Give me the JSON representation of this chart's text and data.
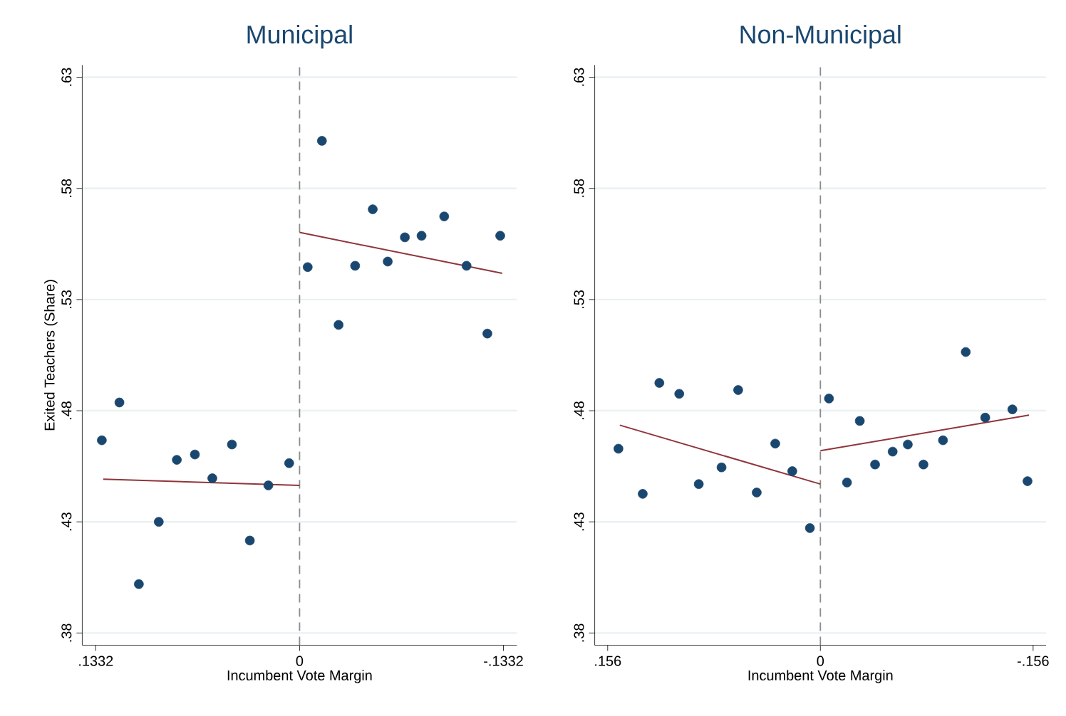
{
  "chart_data": [
    {
      "type": "scatter",
      "title": "Municipal",
      "xlabel": "Incumbent Vote Margin",
      "ylabel": "Exited Teachers (Share)",
      "xlim": [
        0.142,
        -0.142
      ],
      "ylim": [
        0.3745,
        0.6355
      ],
      "xticks": [
        {
          "value": 0.1332,
          "label": ".1332"
        },
        0,
        {
          "value": -0.1332,
          "label": "-.1332"
        }
      ],
      "yticks": [
        {
          "value": 0.38,
          "label": ".38"
        },
        {
          "value": 0.43,
          "label": ".43"
        },
        {
          "value": 0.48,
          "label": ".48"
        },
        {
          "value": 0.53,
          "label": ".53"
        },
        {
          "value": 0.58,
          "label": ".58"
        },
        {
          "value": 0.63,
          "label": ".63"
        }
      ],
      "grid": "y",
      "ref_lines": [
        {
          "axis": "x",
          "value": 0,
          "color": "#8c8c8c",
          "line_style": "dashed"
        }
      ],
      "series": [
        {
          "marker": "circle",
          "color": "#1a476f",
          "x": [
            0.1292,
            0.1177,
            0.105,
            0.092,
            0.0802,
            0.0684,
            0.057,
            0.0442,
            0.0325,
            0.0204,
            0.0068,
            -0.0053,
            -0.0146,
            -0.0255,
            -0.0363,
            -0.0478,
            -0.0576,
            -0.0688,
            -0.0797,
            -0.0945,
            -0.1091,
            -0.1227,
            -0.1311
          ],
          "values": [
            0.4667,
            0.4837,
            0.402,
            0.43,
            0.4579,
            0.4603,
            0.4496,
            0.4648,
            0.4216,
            0.4464,
            0.4564,
            0.5446,
            0.6014,
            0.5186,
            0.5452,
            0.5706,
            0.5471,
            0.558,
            0.5587,
            0.5674,
            0.5452,
            0.5147,
            0.5587
          ]
        },
        {
          "type": "line",
          "color": "#90353b",
          "x": [
            0.1283,
            0
          ],
          "values": [
            0.4492,
            0.4464
          ]
        },
        {
          "type": "line",
          "color": "#90353b",
          "x": [
            0,
            -0.1324
          ],
          "values": [
            0.5602,
            0.5418
          ]
        }
      ]
    },
    {
      "type": "scatter",
      "title": "Non-Municipal",
      "xlabel": "Incumbent Vote Margin",
      "xlim": [
        0.1655,
        -0.1655
      ],
      "ylim": [
        0.3745,
        0.6355
      ],
      "xticks": [
        {
          "value": 0.156,
          "label": ".156"
        },
        0,
        {
          "value": -0.156,
          "label": "-.156"
        }
      ],
      "yticks": [
        {
          "value": 0.38,
          "label": ".38"
        },
        {
          "value": 0.43,
          "label": ".43"
        },
        {
          "value": 0.48,
          "label": ".48"
        },
        {
          "value": 0.53,
          "label": ".53"
        },
        {
          "value": 0.58,
          "label": ".58"
        },
        {
          "value": 0.63,
          "label": ".63"
        }
      ],
      "grid": "y",
      "ref_lines": [
        {
          "axis": "x",
          "value": 0,
          "color": "#8c8c8c",
          "line_style": "dashed"
        }
      ],
      "series": [
        {
          "marker": "circle",
          "color": "#1a476f",
          "x": [
            0.1481,
            0.1303,
            0.1181,
            0.1035,
            0.0892,
            0.0725,
            0.0603,
            0.0467,
            0.0331,
            0.0206,
            0.0077,
            -0.0063,
            -0.0195,
            -0.0289,
            -0.0401,
            -0.053,
            -0.0641,
            -0.0756,
            -0.0899,
            -0.1066,
            -0.1209,
            -0.1408,
            -0.1519
          ],
          "values": [
            0.4629,
            0.4426,
            0.4925,
            0.4876,
            0.447,
            0.4545,
            0.4893,
            0.4432,
            0.4652,
            0.4528,
            0.4272,
            0.4855,
            0.4477,
            0.4754,
            0.4558,
            0.4616,
            0.4648,
            0.4558,
            0.4667,
            0.5064,
            0.4769,
            0.4806,
            0.4483
          ]
        },
        {
          "type": "line",
          "color": "#90353b",
          "x": [
            0.1471,
            0
          ],
          "values": [
            0.4735,
            0.447
          ]
        },
        {
          "type": "line",
          "color": "#90353b",
          "x": [
            0,
            -0.153
          ],
          "values": [
            0.462,
            0.478
          ]
        }
      ]
    }
  ]
}
